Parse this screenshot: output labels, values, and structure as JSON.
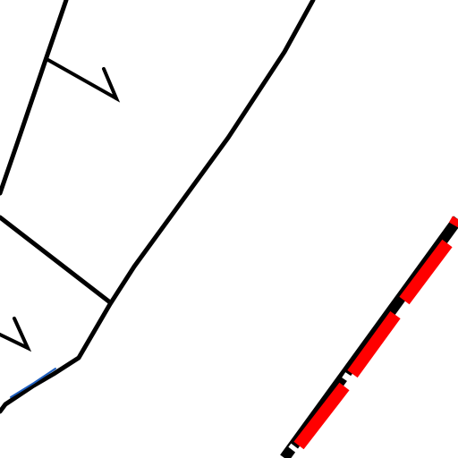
{
  "map": {
    "background_color": "#ffffff",
    "road_color": "#000000",
    "railway_color": "#ff0000",
    "railway_segment_color": "#000000",
    "water_color": "#1f5fbf"
  },
  "legend": {}
}
